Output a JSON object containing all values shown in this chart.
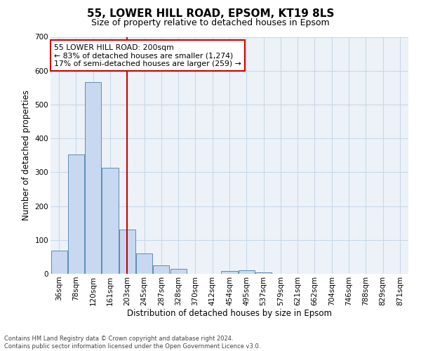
{
  "title1": "55, LOWER HILL ROAD, EPSOM, KT19 8LS",
  "title2": "Size of property relative to detached houses in Epsom",
  "xlabel": "Distribution of detached houses by size in Epsom",
  "ylabel": "Number of detached properties",
  "bins": [
    "36sqm",
    "78sqm",
    "120sqm",
    "161sqm",
    "203sqm",
    "245sqm",
    "287sqm",
    "328sqm",
    "370sqm",
    "412sqm",
    "454sqm",
    "495sqm",
    "537sqm",
    "579sqm",
    "621sqm",
    "662sqm",
    "704sqm",
    "746sqm",
    "788sqm",
    "829sqm",
    "871sqm"
  ],
  "counts": [
    68,
    352,
    567,
    314,
    131,
    60,
    25,
    15,
    0,
    0,
    9,
    10,
    5,
    0,
    0,
    0,
    0,
    0,
    0,
    0,
    0
  ],
  "bar_color": "#c8d8f0",
  "bar_edge_color": "#5b8db8",
  "vline_x_index": 4,
  "vline_color": "#cc0000",
  "annotation_text": "55 LOWER HILL ROAD: 200sqm\n← 83% of detached houses are smaller (1,274)\n17% of semi-detached houses are larger (259) →",
  "annotation_box_color": "#ffffff",
  "annotation_box_edge": "#cc0000",
  "grid_color": "#c8d8e8",
  "bg_color": "#edf2f8",
  "footer": "Contains HM Land Registry data © Crown copyright and database right 2024.\nContains public sector information licensed under the Open Government Licence v3.0.",
  "ylim": [
    0,
    700
  ],
  "yticks": [
    0,
    100,
    200,
    300,
    400,
    500,
    600,
    700
  ],
  "title1_fontsize": 11,
  "title2_fontsize": 9,
  "ylabel_fontsize": 8.5,
  "xlabel_fontsize": 8.5,
  "tick_fontsize": 7.5,
  "footer_fontsize": 6.0
}
